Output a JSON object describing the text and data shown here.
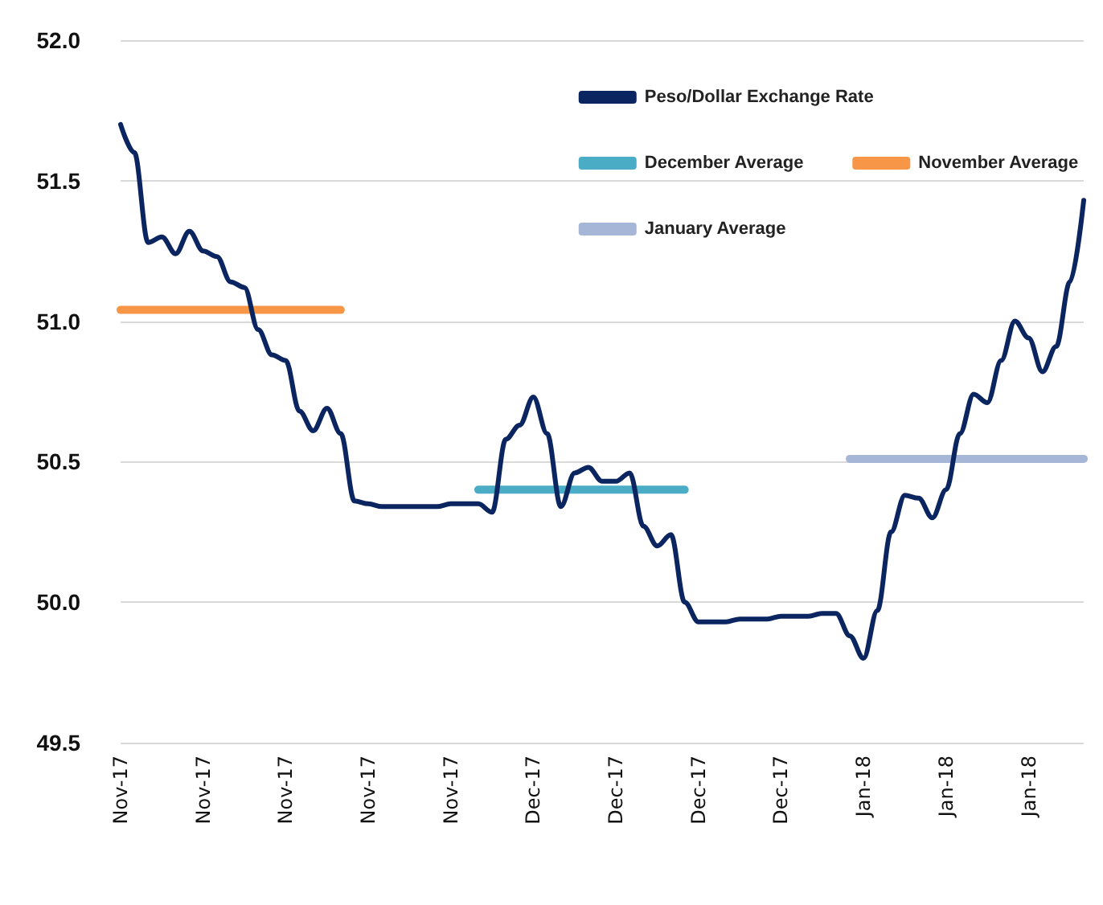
{
  "chart_data": {
    "type": "line",
    "categories": [
      "Nov-17",
      null,
      null,
      null,
      null,
      null,
      "Nov-17",
      null,
      null,
      null,
      null,
      null,
      "Nov-17",
      null,
      null,
      null,
      null,
      null,
      "Nov-17",
      null,
      null,
      null,
      null,
      null,
      "Nov-17",
      null,
      null,
      null,
      null,
      null,
      "Dec-17",
      null,
      null,
      null,
      null,
      null,
      "Dec-17",
      null,
      null,
      null,
      null,
      null,
      "Dec-17",
      null,
      null,
      null,
      null,
      null,
      "Dec-17",
      null,
      null,
      null,
      null,
      null,
      "Jan-18",
      null,
      null,
      null,
      null,
      null,
      "Jan-18",
      null,
      null,
      null,
      null,
      null,
      "Jan-18",
      null,
      null,
      null,
      null
    ],
    "series": [
      {
        "name": "Peso/Dollar Exchange Rate",
        "color": "#0b2560",
        "values": [
          51.7,
          51.6,
          51.28,
          51.3,
          51.24,
          51.32,
          51.25,
          51.23,
          51.14,
          51.12,
          50.97,
          50.88,
          50.86,
          50.68,
          50.61,
          50.69,
          50.6,
          50.36,
          50.35,
          50.34,
          50.34,
          50.34,
          50.34,
          50.34,
          50.35,
          50.35,
          50.35,
          50.32,
          50.58,
          50.63,
          50.73,
          50.6,
          50.34,
          50.46,
          50.48,
          50.43,
          50.43,
          50.46,
          50.27,
          50.2,
          50.24,
          50.0,
          49.93,
          49.93,
          49.93,
          49.94,
          49.94,
          49.94,
          49.95,
          49.95,
          49.95,
          49.96,
          49.96,
          49.88,
          49.8,
          49.97,
          50.25,
          50.38,
          50.37,
          50.3,
          50.4,
          50.6,
          50.74,
          50.71,
          50.86,
          51.0,
          50.94,
          50.82,
          50.91,
          51.14,
          51.43
        ]
      },
      {
        "name": "December Average",
        "color": "#4bacc6",
        "values": [
          null,
          null,
          null,
          null,
          null,
          null,
          null,
          null,
          null,
          null,
          null,
          null,
          null,
          null,
          null,
          null,
          null,
          null,
          null,
          null,
          null,
          null,
          null,
          null,
          null,
          null,
          50.4,
          50.4,
          50.4,
          50.4,
          50.4,
          50.4,
          50.4,
          50.4,
          50.4,
          50.4,
          50.4,
          50.4,
          50.4,
          50.4,
          50.4,
          50.4,
          null,
          null,
          null,
          null,
          null,
          null,
          null,
          null,
          null,
          null,
          null,
          null,
          null,
          null,
          null,
          null,
          null,
          null,
          null,
          null,
          null,
          null,
          null,
          null,
          null,
          null,
          null,
          null,
          null
        ]
      },
      {
        "name": "November Average",
        "color": "#f79646",
        "values": [
          51.04,
          51.04,
          51.04,
          51.04,
          51.04,
          51.04,
          51.04,
          51.04,
          51.04,
          51.04,
          51.04,
          51.04,
          51.04,
          51.04,
          51.04,
          51.04,
          51.04,
          null,
          null,
          null,
          null,
          null,
          null,
          null,
          null,
          null,
          null,
          null,
          null,
          null,
          null,
          null,
          null,
          null,
          null,
          null,
          null,
          null,
          null,
          null,
          null,
          null,
          null,
          null,
          null,
          null,
          null,
          null,
          null,
          null,
          null,
          null,
          null,
          null,
          null,
          null,
          null,
          null,
          null,
          null,
          null,
          null,
          null,
          null,
          null,
          null,
          null,
          null,
          null,
          null,
          null
        ]
      },
      {
        "name": "January Average",
        "color": "#a6b6d6",
        "values": [
          null,
          null,
          null,
          null,
          null,
          null,
          null,
          null,
          null,
          null,
          null,
          null,
          null,
          null,
          null,
          null,
          null,
          null,
          null,
          null,
          null,
          null,
          null,
          null,
          null,
          null,
          null,
          null,
          null,
          null,
          null,
          null,
          null,
          null,
          null,
          null,
          null,
          null,
          null,
          null,
          null,
          null,
          null,
          null,
          null,
          null,
          null,
          null,
          null,
          null,
          null,
          null,
          null,
          50.51,
          50.51,
          50.51,
          50.51,
          50.51,
          50.51,
          50.51,
          50.51,
          50.51,
          50.51,
          50.51,
          50.51,
          50.51,
          50.51,
          50.51,
          50.51,
          50.51,
          50.51
        ]
      }
    ],
    "ylim": [
      49.5,
      52.0
    ],
    "yticks": [
      49.5,
      {
        "value": 50,
        "label": "50.0"
      },
      50.5,
      {
        "value": 51,
        "label": "51.0"
      },
      51.5,
      {
        "value": 52,
        "label": "52.0"
      }
    ],
    "grid": "y",
    "legend": "top right",
    "marker": "none",
    "line_style": "solid"
  }
}
